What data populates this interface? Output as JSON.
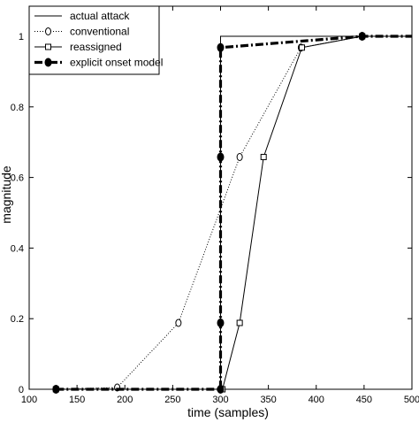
{
  "chart_data": {
    "type": "line",
    "title": "",
    "xlabel": "time (samples)",
    "ylabel": "magnitude",
    "xlim": [
      100,
      500
    ],
    "ylim": [
      0,
      1.05
    ],
    "xticks": [
      100,
      150,
      200,
      250,
      300,
      350,
      400,
      450,
      500
    ],
    "yticks": [
      0,
      0.2,
      0.4,
      0.6,
      0.8,
      1
    ],
    "xtick_labels": [
      "100",
      "150",
      "200",
      "250",
      "300",
      "350",
      "400",
      "450",
      "500"
    ],
    "ytick_labels": [
      "0",
      "0.2",
      "0.4",
      "0.6",
      "0.8",
      "1"
    ],
    "grid": false,
    "legend_position": "top-left",
    "series": [
      {
        "name": "actual attack",
        "style": "solid",
        "marker": "none",
        "color": "#000000",
        "points": [
          [
            128,
            0
          ],
          [
            300,
            0
          ],
          [
            300,
            1
          ],
          [
            500,
            1
          ]
        ]
      },
      {
        "name": "conventional",
        "style": "dotted",
        "marker": "diamond",
        "color": "#000000",
        "points": [
          [
            128,
            0
          ],
          [
            192,
            0.005
          ],
          [
            256,
            0.188
          ],
          [
            320,
            0.658
          ],
          [
            384,
            0.968
          ],
          [
            448,
            1
          ],
          [
            500,
            1
          ]
        ]
      },
      {
        "name": "reassigned",
        "style": "solid",
        "marker": "square",
        "color": "#000000",
        "points": [
          [
            128,
            0
          ],
          [
            302,
            0
          ],
          [
            320,
            0.188
          ],
          [
            345,
            0.658
          ],
          [
            385,
            0.968
          ],
          [
            448,
            1
          ],
          [
            500,
            1
          ]
        ]
      },
      {
        "name": "explicit onset model",
        "style": "dashdot",
        "marker": "filled-circle",
        "color": "#000000",
        "points": [
          [
            128,
            0
          ],
          [
            300,
            0
          ],
          [
            300,
            0.188
          ],
          [
            300,
            0.658
          ],
          [
            300,
            0.968
          ],
          [
            448,
            1
          ],
          [
            500,
            1
          ]
        ]
      }
    ]
  }
}
